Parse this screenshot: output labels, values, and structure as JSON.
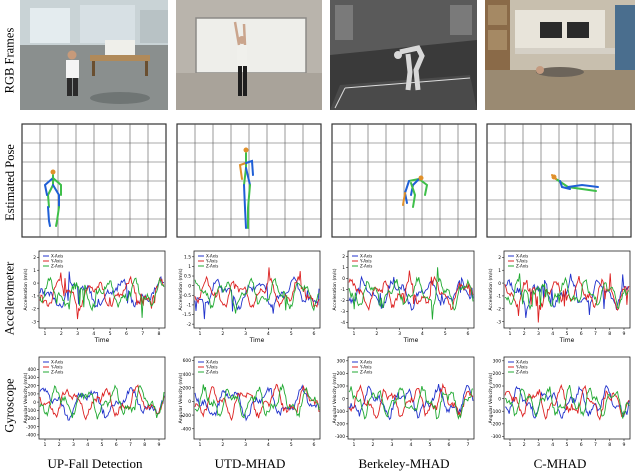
{
  "row_labels": {
    "rgb": "RGB Frames",
    "pose": "Estimated Pose",
    "acc": "Accelerometer",
    "gyro": "Gyroscope"
  },
  "columns": [
    {
      "title": "UP-Fall Detection",
      "acc": {
        "ylabel": "Acceleration (m/s)",
        "xlabel": "Time",
        "xticks": [
          "1",
          "2",
          "3",
          "4",
          "5",
          "6",
          "7",
          "8"
        ],
        "yticks": [
          "2",
          "1",
          "0",
          "-1",
          "-2",
          "-3"
        ],
        "ylim": [
          -3.5,
          2.5
        ],
        "legend": [
          "X-Axis",
          "Y-Axis",
          "Z-Axis"
        ]
      },
      "gyro": {
        "ylabel": "Angular Velocity (m/s)",
        "xlabel": "",
        "xticks": [
          "1",
          "2",
          "3",
          "4",
          "5",
          "6",
          "7",
          "8",
          "9"
        ],
        "yticks": [
          "400",
          "300",
          "200",
          "100",
          "0",
          "-100",
          "-200",
          "-300",
          "-400"
        ],
        "ylim": [
          -450,
          550
        ],
        "legend": [
          "X-Axis",
          "Y-Axis",
          "Z-Axis"
        ]
      }
    },
    {
      "title": "UTD-MHAD",
      "acc": {
        "ylabel": "Acceleration (m/s)",
        "xlabel": "Time",
        "xticks": [
          "1",
          "2",
          "3",
          "4",
          "5",
          "6"
        ],
        "yticks": [
          "1.5",
          "1",
          "0.5",
          "0",
          "-0.5",
          "-1",
          "-1.5",
          "-2"
        ],
        "ylim": [
          -2.2,
          1.8
        ],
        "legend": [
          "X-Axis",
          "Y-Axis",
          "Z-Axis"
        ]
      },
      "gyro": {
        "ylabel": "Angular Velocity (m/s)",
        "xlabel": "",
        "xticks": [
          "1",
          "2",
          "3",
          "4",
          "5",
          "6"
        ],
        "yticks": [
          "600",
          "400",
          "200",
          "0",
          "-200",
          "-400"
        ],
        "ylim": [
          -550,
          650
        ],
        "legend": [
          "X-Axis",
          "Y-Axis",
          "Z-Axis"
        ]
      }
    },
    {
      "title": "Berkeley-MHAD",
      "acc": {
        "ylabel": "Acceleration (m/s)",
        "xlabel": "Time",
        "xticks": [
          "1",
          "2",
          "3",
          "4",
          "5",
          "6"
        ],
        "yticks": [
          "2",
          "1",
          "0",
          "-1",
          "-2",
          "-3",
          "-4"
        ],
        "ylim": [
          -4.5,
          2.5
        ],
        "legend": [
          "X-Axis",
          "Y-Axis",
          "Z-Axis"
        ]
      },
      "gyro": {
        "ylabel": "Angular Velocity (m/s)",
        "xlabel": "",
        "xticks": [
          "1",
          "2",
          "3",
          "4",
          "5",
          "6",
          "7"
        ],
        "yticks": [
          "300",
          "200",
          "100",
          "0",
          "-100",
          "-200",
          "-300"
        ],
        "ylim": [
          -320,
          330
        ],
        "legend": [
          "X-Axis",
          "Y-Axis",
          "Z-Axis"
        ]
      }
    },
    {
      "title": "C-MHAD",
      "acc": {
        "ylabel": "Acceleration (m/s)",
        "xlabel": "Time",
        "xticks": [
          "1",
          "2",
          "3",
          "4",
          "5",
          "6",
          "7",
          "8",
          "9"
        ],
        "yticks": [
          "2",
          "1",
          "0",
          "-1",
          "-2",
          "-3"
        ],
        "ylim": [
          -3.5,
          2.5
        ],
        "legend": [
          "X-Axis",
          "Y-Axis",
          "Z-Axis"
        ]
      },
      "gyro": {
        "ylabel": "Angular Velocity (m/s)",
        "xlabel": "",
        "xticks": [
          "1",
          "2",
          "3",
          "4",
          "5",
          "6",
          "7",
          "8",
          "9"
        ],
        "yticks": [
          "300",
          "200",
          "100",
          "0",
          "-100",
          "-200",
          "-300"
        ],
        "ylim": [
          -320,
          330
        ],
        "legend": [
          "X-Axis",
          "Y-Axis",
          "Z-Axis"
        ]
      }
    }
  ],
  "colors": {
    "x_axis": "#2233cc",
    "y_axis": "#dd2222",
    "z_axis": "#22aa33",
    "grid": "#333333",
    "skeleton_blue": "#1f5fd6",
    "skeleton_green": "#3fbf4a",
    "skeleton_orange": "#e0902a"
  }
}
